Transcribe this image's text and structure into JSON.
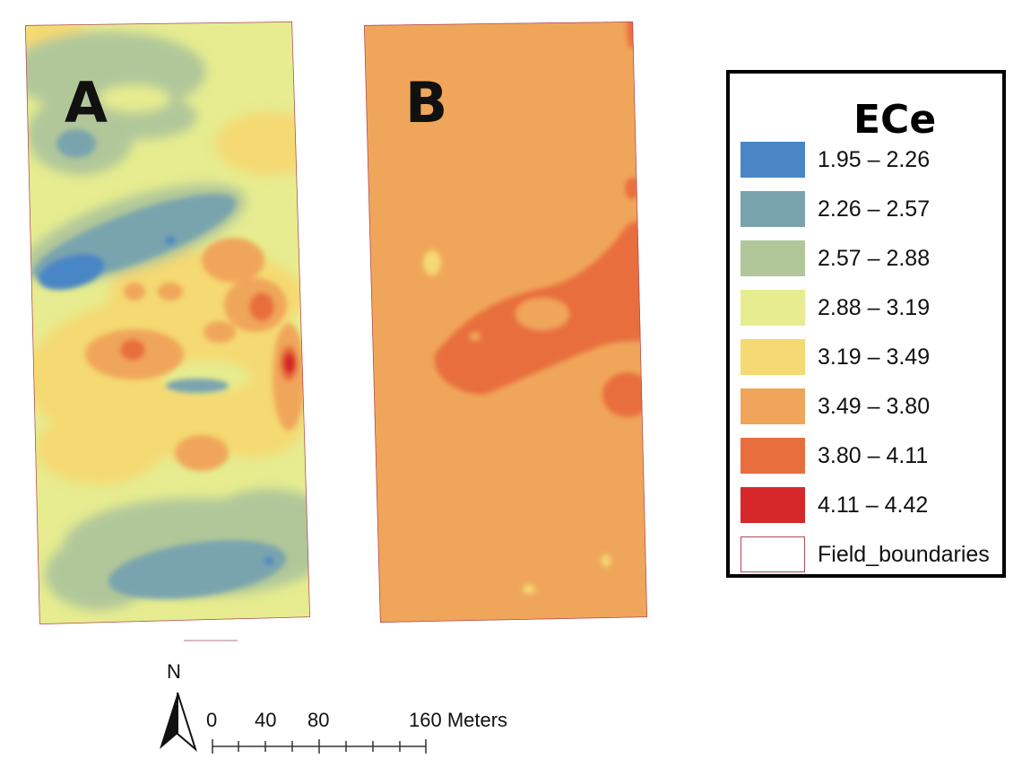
{
  "panels": [
    {
      "letter": "A"
    },
    {
      "letter": "B"
    }
  ],
  "legend": {
    "title": "ECe",
    "classes": [
      {
        "label": "1.95 – 2.26",
        "color": "#4a86c5"
      },
      {
        "label": "2.26 – 2.57",
        "color": "#79a4ae"
      },
      {
        "label": "2.57 – 2.88",
        "color": "#b1c79a"
      },
      {
        "label": "2.88 – 3.19",
        "color": "#e6ec8f"
      },
      {
        "label": "3.19 – 3.49",
        "color": "#f5d972"
      },
      {
        "label": "3.49 – 3.80",
        "color": "#f0a65a"
      },
      {
        "label": "3.80 – 4.11",
        "color": "#e86e3e"
      },
      {
        "label": "4.11 – 4.42",
        "color": "#d6282a"
      }
    ],
    "boundary": {
      "label": "Field_boundaries",
      "color": "#b04a55"
    }
  },
  "north_arrow": {
    "label": "N"
  },
  "scale_bar": {
    "ticks": [
      "0",
      "40",
      "80",
      "160 Meters"
    ]
  }
}
